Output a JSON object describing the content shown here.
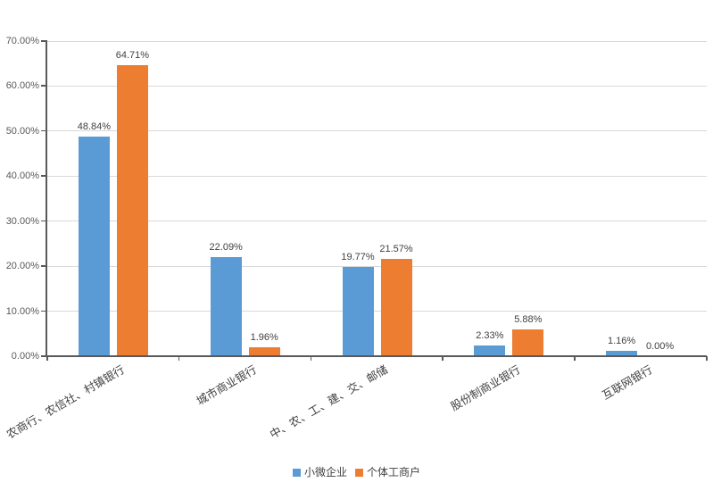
{
  "chart_data": {
    "type": "bar",
    "categories": [
      "农商行、农信社、村镇银行",
      "城市商业银行",
      "中、农、工、建、交、邮储",
      "股份制商业银行",
      "互联网银行"
    ],
    "series": [
      {
        "name": "小微企业",
        "color": "#5B9BD5",
        "values": [
          48.84,
          22.09,
          19.77,
          2.33,
          1.16
        ]
      },
      {
        "name": "个体工商户",
        "color": "#ED7D31",
        "values": [
          64.71,
          1.96,
          21.57,
          5.88,
          0.0
        ]
      }
    ],
    "data_labels": [
      [
        "48.84%",
        "22.09%",
        "19.77%",
        "2.33%",
        "1.16%"
      ],
      [
        "64.71%",
        "1.96%",
        "21.57%",
        "5.88%",
        "0.00%"
      ]
    ],
    "y_axis": {
      "min": 0,
      "max": 70,
      "step": 10,
      "tick_labels": [
        "0.00%",
        "10.00%",
        "20.00%",
        "30.00%",
        "40.00%",
        "50.00%",
        "60.00%",
        "70.00%"
      ]
    },
    "legend": {
      "position": "bottom",
      "items": [
        "小微企业",
        "个体工商户"
      ]
    },
    "grid": true,
    "colors": {
      "background": "#FFFFFF",
      "grid": "#D9D9D9",
      "axis": "#595959",
      "tick_label": "#595959",
      "data_label": "#404040",
      "category_label": "#404040",
      "legend_label": "#404040"
    }
  }
}
